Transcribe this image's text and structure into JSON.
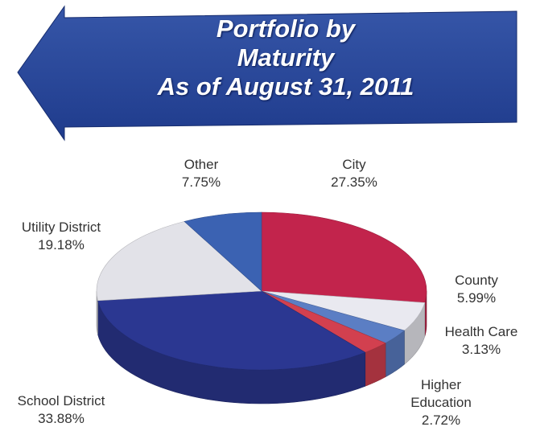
{
  "chart_data": {
    "type": "pie3d",
    "title": "Portfolio by Maturity",
    "subtitle": "As of August 31, 2011",
    "categories": [
      "City",
      "County",
      "Health Care",
      "Higher Education",
      "School District",
      "Utility District",
      "Other"
    ],
    "values": [
      27.35,
      5.99,
      3.13,
      2.72,
      33.88,
      19.18,
      7.75
    ],
    "value_labels": [
      "27.35%",
      "5.99%",
      "3.13%",
      "2.72%",
      "33.88%",
      "19.18%",
      "7.75%"
    ],
    "colors": [
      "#c2244c",
      "#e9e9f0",
      "#5b7ec4",
      "#d2404f",
      "#2b3791",
      "#e2e2e8",
      "#3b62b2"
    ]
  }
}
